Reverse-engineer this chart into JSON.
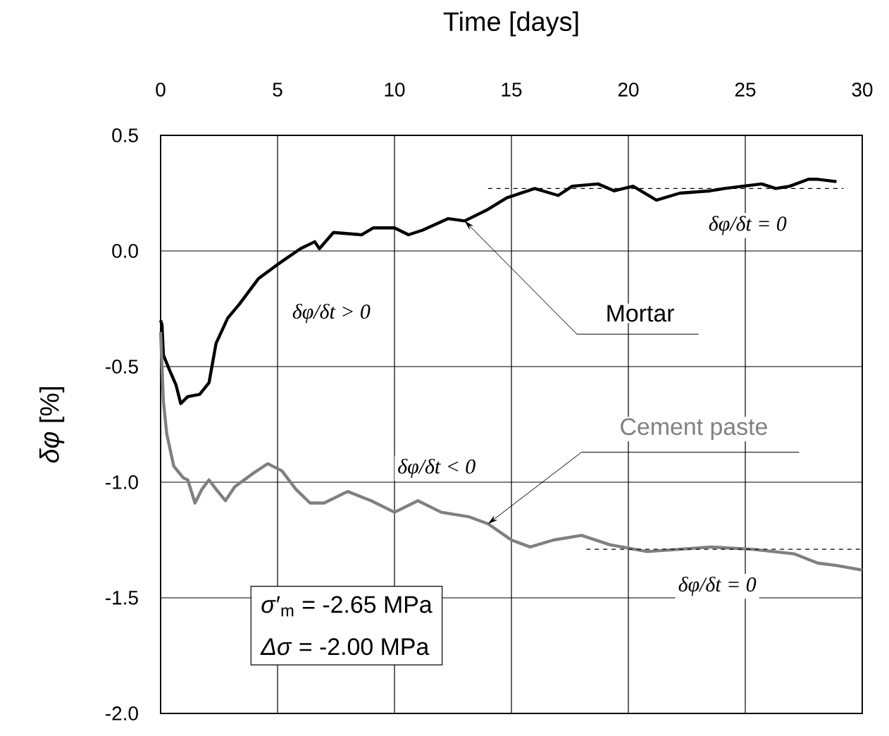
{
  "chart_data": {
    "type": "line",
    "xlabel": "Time [days]",
    "ylabel": "*δφ* [%]",
    "xlim": [
      0,
      30
    ],
    "xticks": [
      0,
      5,
      10,
      15,
      20,
      25,
      30
    ],
    "ylim": [
      -2.0,
      0.5
    ],
    "yticks": [
      0.5,
      {
        "value": 0.0,
        "label": "0.0"
      },
      -0.5,
      {
        "value": -1.0,
        "label": "-1.0"
      },
      -1.5,
      {
        "value": -2.0,
        "label": "-2.0"
      }
    ],
    "grid": true,
    "series": [
      {
        "name": "Mortar",
        "color": "#000000",
        "line_style": "solid",
        "x": [
          0.0,
          0.06,
          0.12,
          0.36,
          0.66,
          0.86,
          1.16,
          1.67,
          2.07,
          2.37,
          2.87,
          3.37,
          4.18,
          4.98,
          5.98,
          6.59,
          6.79,
          7.39,
          8.59,
          9.1,
          10.0,
          10.6,
          11.2,
          12.3,
          13.0,
          14.0,
          14.8,
          16.0,
          17.0,
          17.6,
          18.7,
          19.4,
          20.2,
          21.2,
          22.2,
          23.5,
          24.1,
          25.7,
          26.3,
          26.9,
          27.7,
          28.1,
          28.9
        ],
        "values": [
          -0.3,
          -0.32,
          -0.45,
          -0.51,
          -0.58,
          -0.66,
          -0.63,
          -0.62,
          -0.57,
          -0.4,
          -0.29,
          -0.23,
          -0.12,
          -0.06,
          0.01,
          0.04,
          0.01,
          0.08,
          0.07,
          0.1,
          0.1,
          0.07,
          0.09,
          0.14,
          0.13,
          0.18,
          0.23,
          0.27,
          0.24,
          0.28,
          0.29,
          0.26,
          0.28,
          0.22,
          0.25,
          0.26,
          0.27,
          0.29,
          0.27,
          0.28,
          0.31,
          0.31,
          0.3
        ]
      },
      {
        "name": "Cement paste",
        "color": "#808080",
        "line_style": "solid",
        "x": [
          0.0,
          0.06,
          0.12,
          0.26,
          0.56,
          0.96,
          1.16,
          1.47,
          1.77,
          2.07,
          2.37,
          2.77,
          3.17,
          3.98,
          4.58,
          5.18,
          5.78,
          6.39,
          6.99,
          8.0,
          9.0,
          10.0,
          11.0,
          12.0,
          13.2,
          14.0,
          15.0,
          15.8,
          16.8,
          18.0,
          19.2,
          20.8,
          22.2,
          23.5,
          25.3,
          27.1,
          28.1,
          28.9,
          30.0
        ],
        "values": [
          -0.35,
          -0.5,
          -0.65,
          -0.79,
          -0.93,
          -0.98,
          -0.99,
          -1.09,
          -1.03,
          -0.99,
          -1.03,
          -1.08,
          -1.02,
          -0.96,
          -0.92,
          -0.95,
          -1.03,
          -1.09,
          -1.09,
          -1.04,
          -1.08,
          -1.13,
          -1.08,
          -1.13,
          -1.15,
          -1.18,
          -1.25,
          -1.28,
          -1.25,
          -1.23,
          -1.27,
          -1.3,
          -1.29,
          -1.28,
          -1.29,
          -1.31,
          -1.35,
          -1.36,
          -1.38
        ]
      },
      {
        "type": "line",
        "color": "#000000",
        "line_style": "dashed",
        "x": [
          14.0,
          29.2
        ],
        "values": [
          0.27,
          0.27
        ]
      },
      {
        "type": "line",
        "color": "#000000",
        "line_style": "dashed",
        "x": [
          18.2,
          30.0
        ],
        "values": [
          -1.29,
          -1.29
        ]
      }
    ],
    "annotations": [
      "δφ/δt > 0",
      "δφ/δt = 0",
      "δφ/δt < 0",
      "δφ/δt = 0",
      "*σ*′$_{m}$ = -2.65 MPa",
      "*Δσ* = -2.00 MPa"
    ]
  }
}
